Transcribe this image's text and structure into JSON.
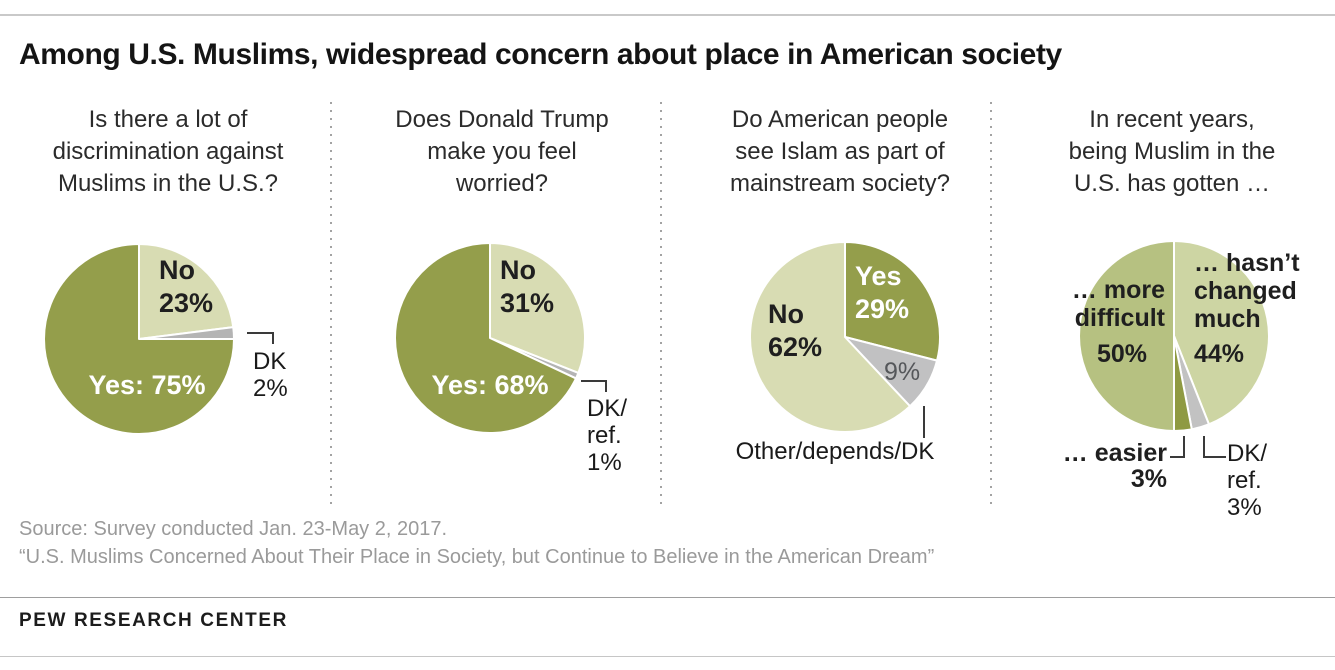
{
  "title": "Among U.S. Muslims, widespread concern about place in American society",
  "panels": [
    {
      "question": "Is there a lot of\ndiscrimination against\nMuslims in the U.S.?",
      "labels": {
        "no": "No\n23%",
        "yes": "Yes: 75%",
        "dk": "DK\n2%"
      }
    },
    {
      "question": "Does Donald Trump\nmake you feel\nworried?",
      "labels": {
        "no": "No\n31%",
        "yes": "Yes: 68%",
        "dk": "DK/\nref.\n1%"
      }
    },
    {
      "question": "Do American people\nsee Islam as part of\nmainstream society?",
      "labels": {
        "yes": "Yes\n29%",
        "no": "No\n62%",
        "other_pct": "9%",
        "other": "Other/depends/DK"
      }
    },
    {
      "question": "In recent years,\nbeing Muslim in the\nU.S. has gotten …",
      "labels": {
        "difficult": "… more\ndifficult",
        "difficult_pct": "50%",
        "changed": "… hasn’t\nchanged\nmuch",
        "changed_pct": "44%",
        "easier": "… easier\n3%",
        "dk": "DK/\nref.\n3%"
      }
    }
  ],
  "chart_data": [
    {
      "type": "pie",
      "title": "Is there a lot of discrimination against Muslims in the U.S.?",
      "unit": "%",
      "slices": [
        {
          "name": "no",
          "label": "No",
          "value": 23,
          "color": "#d8dcb3"
        },
        {
          "name": "dk",
          "label": "DK",
          "value": 2,
          "color": "#b4b4b4"
        },
        {
          "name": "yes",
          "label": "Yes",
          "value": 75,
          "color": "#949e4b"
        }
      ]
    },
    {
      "type": "pie",
      "title": "Does Donald Trump make you feel worried?",
      "unit": "%",
      "slices": [
        {
          "name": "no",
          "label": "No",
          "value": 31,
          "color": "#d8dcb3"
        },
        {
          "name": "dk-ref",
          "label": "DK/ref.",
          "value": 1,
          "color": "#b4b4b4"
        },
        {
          "name": "yes",
          "label": "Yes",
          "value": 68,
          "color": "#949e4b"
        }
      ]
    },
    {
      "type": "pie",
      "title": "Do American people see Islam as part of mainstream society?",
      "unit": "%",
      "slices": [
        {
          "name": "yes",
          "label": "Yes",
          "value": 29,
          "color": "#949e4b"
        },
        {
          "name": "other-depends-dk",
          "label": "Other/depends/DK",
          "value": 9,
          "color": "#c1c1c2"
        },
        {
          "name": "no",
          "label": "No",
          "value": 62,
          "color": "#d8dcb3"
        }
      ]
    },
    {
      "type": "pie",
      "title": "In recent years, being Muslim in the U.S. has gotten …",
      "unit": "%",
      "slices": [
        {
          "name": "hasnt-changed-much",
          "label": "… hasn’t changed much",
          "value": 44,
          "color": "#cdd5a3"
        },
        {
          "name": "dk-ref",
          "label": "DK/ref.",
          "value": 3,
          "color": "#c2c2c2"
        },
        {
          "name": "easier",
          "label": "… easier",
          "value": 3,
          "color": "#8f9a42"
        },
        {
          "name": "more-difficult",
          "label": "… more difficult",
          "value": 50,
          "color": "#b6c181"
        }
      ]
    }
  ],
  "footer": {
    "source": "Source: Survey conducted Jan. 23-May 2, 2017.",
    "report": "“U.S. Muslims Concerned About Their Place in Society, but Continue to Believe in the American Dream”",
    "brand": "PEW RESEARCH CENTER"
  }
}
